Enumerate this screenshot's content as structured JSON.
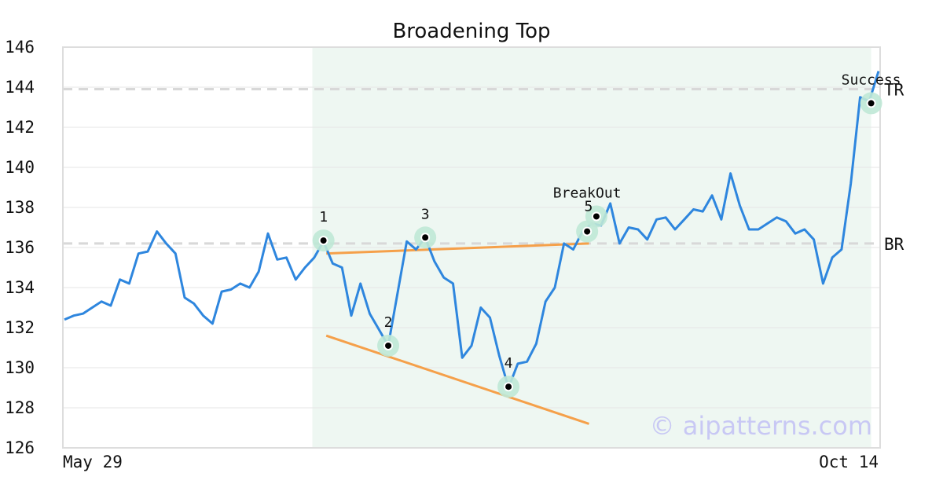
{
  "chart_data": {
    "type": "line",
    "title": "Broadening Top",
    "watermark": "© aipatterns.com",
    "ylim": [
      126,
      146
    ],
    "yticks": [
      "126",
      "128",
      "130",
      "132",
      "134",
      "136",
      "138",
      "140",
      "142",
      "144",
      "146"
    ],
    "x_labels": {
      "start": "May 29",
      "end": "Oct 14"
    },
    "grid": true,
    "colors": {
      "price": "#2e86de",
      "trend": "#f5a04a",
      "highlight": "#eef7f2",
      "marker_halo": "#bfe8d6",
      "ref_line": "#d8d8d8"
    },
    "series": [
      {
        "values": [
          132.4,
          132.6,
          132.7,
          133.0,
          133.3,
          133.1,
          134.4,
          134.2,
          135.7,
          135.8,
          136.8,
          136.2,
          135.7,
          133.5,
          133.2,
          132.6,
          132.2,
          133.8,
          133.9,
          134.2,
          134.0,
          134.8,
          136.7,
          135.4,
          135.5,
          134.4,
          135.0,
          135.5,
          136.3,
          135.2,
          135.0,
          132.6,
          134.2,
          132.7,
          131.9,
          131.1,
          133.7,
          136.3,
          135.9,
          136.5,
          135.3,
          134.5,
          134.2,
          130.5,
          131.1,
          133.0,
          132.5,
          130.6,
          129.0,
          130.2,
          130.3,
          131.2,
          133.3,
          134.0,
          136.2,
          135.9,
          136.8,
          137.2,
          137.1,
          138.2,
          136.2,
          137.0,
          136.9,
          136.4,
          137.4,
          137.5,
          136.9,
          137.4,
          137.9,
          137.8,
          138.6,
          137.4,
          139.7,
          138.1,
          136.9,
          136.9,
          137.2,
          137.5,
          137.3,
          136.7,
          136.9,
          136.4,
          134.2,
          135.5,
          135.9,
          139.2,
          143.5,
          143.3,
          144.8
        ]
      }
    ],
    "reference_lines": [
      {
        "label": "TR",
        "value": 143.9
      },
      {
        "label": "BR",
        "value": 136.2
      }
    ],
    "trend_lines": [
      {
        "from": [
          28.3,
          135.7
        ],
        "to": [
          56.7,
          136.2
        ]
      },
      {
        "from": [
          28.3,
          131.6
        ],
        "to": [
          56.7,
          127.2
        ]
      }
    ],
    "highlight_range": [
      26.8,
      87.2
    ],
    "points": [
      {
        "label": "1",
        "i": 28,
        "value": 136.35
      },
      {
        "label": "2",
        "i": 35,
        "value": 131.1
      },
      {
        "label": "3",
        "i": 39,
        "value": 136.5
      },
      {
        "label": "4",
        "i": 48,
        "value": 129.05
      },
      {
        "label": "5",
        "i": 57.5,
        "value": 137.55
      },
      {
        "label": "BreakOut",
        "i": 56.5,
        "value": 136.8
      },
      {
        "label": "Success",
        "i": 87.2,
        "value": 143.2
      }
    ]
  }
}
